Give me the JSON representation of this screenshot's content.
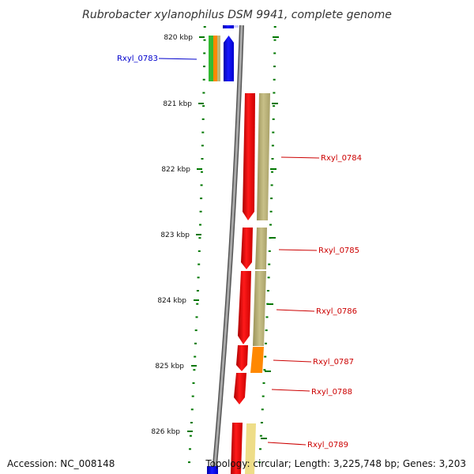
{
  "title": "Rubrobacter xylanophilus DSM 9941, complete genome",
  "accession": "Accession: NC_008148",
  "topology": "Topology: circular; Length: 3,225,748 bp; Genes: 3,203",
  "kbp_labels": [
    "820 kbp",
    "821 kbp",
    "822 kbp",
    "823 kbp",
    "824 kbp",
    "825 kbp",
    "826 kbp"
  ],
  "genes": [
    {
      "name": "Rxyl_0783",
      "color": "#0000cc"
    },
    {
      "name": "Rxyl_0784",
      "color": "#cc0000"
    },
    {
      "name": "Rxyl_0785",
      "color": "#cc0000"
    },
    {
      "name": "Rxyl_0786",
      "color": "#cc0000"
    },
    {
      "name": "Rxyl_0787",
      "color": "#cc0000"
    },
    {
      "name": "Rxyl_0788",
      "color": "#cc0000"
    },
    {
      "name": "Rxyl_0789",
      "color": "#cc0000"
    }
  ],
  "colors": {
    "forward_gene": "#ee0000",
    "reverse_gene": "#0000ee",
    "cog_olive": "#b8b070",
    "cog_orange": "#ff8800",
    "cog_green": "#33bb33",
    "cog_pale": "#eedd88",
    "backbone": "#888888",
    "ticks": "#007700"
  }
}
